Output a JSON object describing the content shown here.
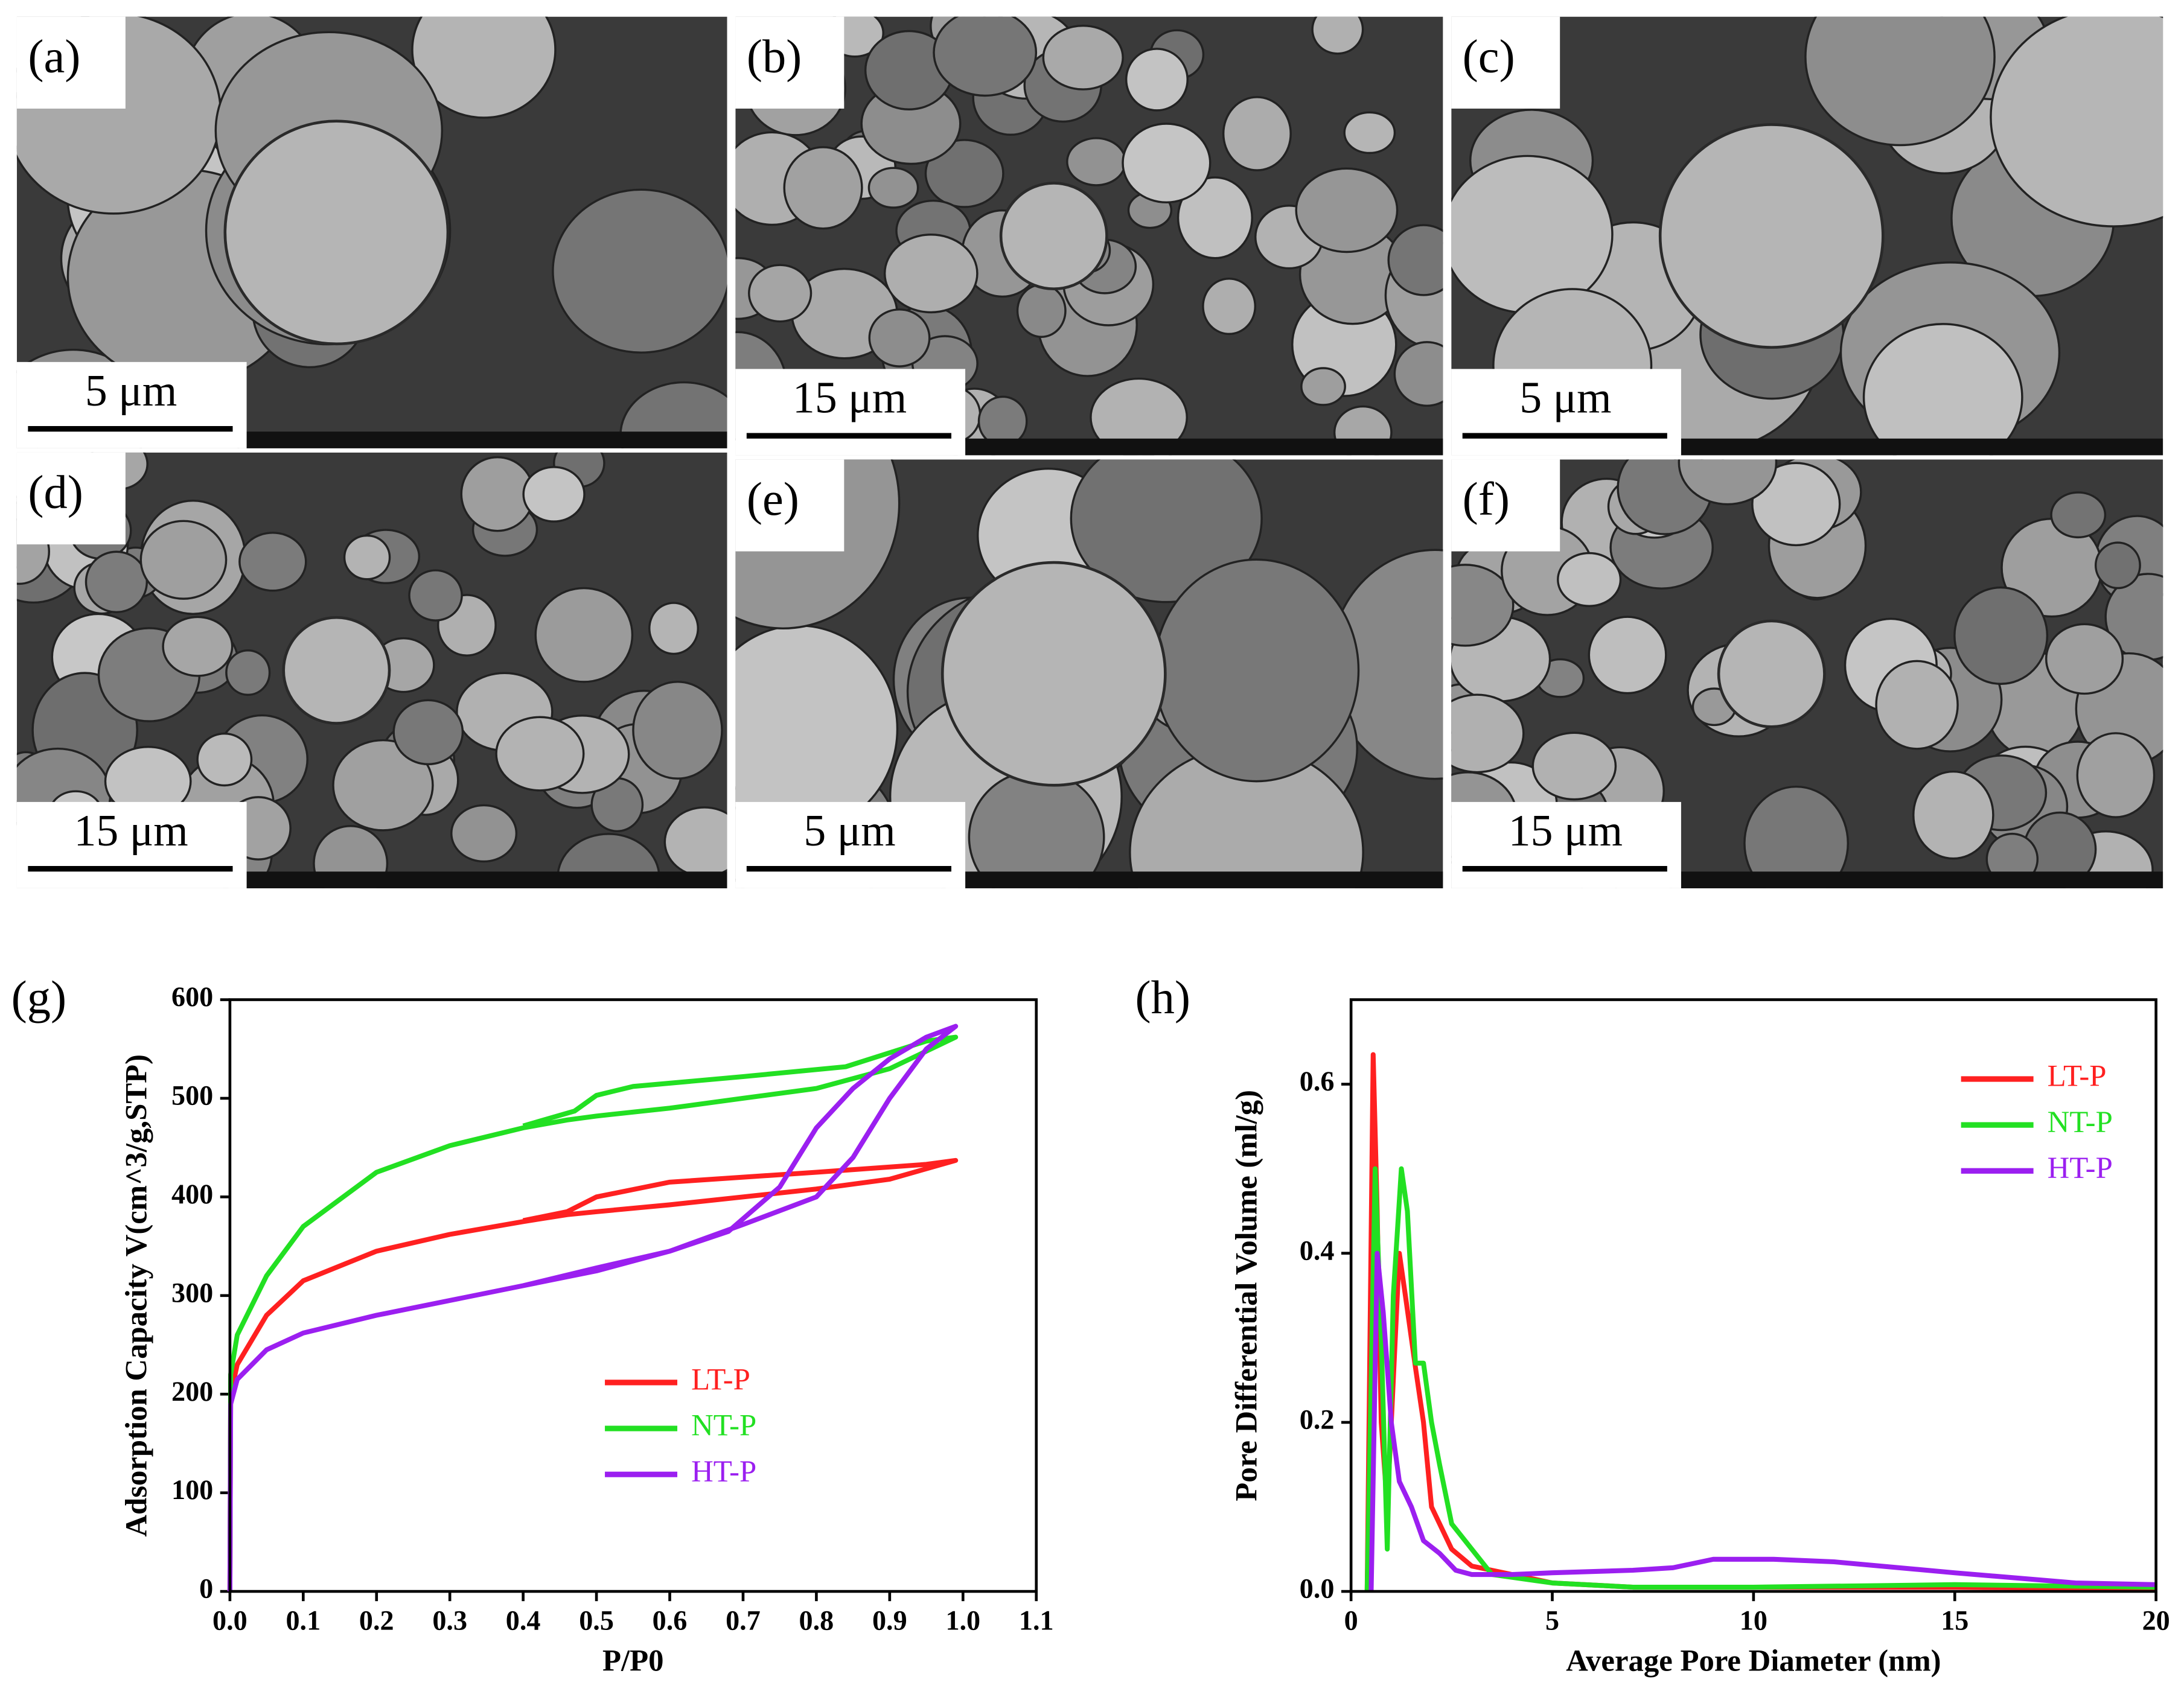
{
  "panels": [
    {
      "label": "(a)",
      "scale_bar": "5 μm"
    },
    {
      "label": "(b)",
      "scale_bar": "15 μm"
    },
    {
      "label": "(c)",
      "scale_bar": "5 μm"
    },
    {
      "label": "(d)",
      "scale_bar": "15 μm"
    },
    {
      "label": "(e)",
      "scale_bar": "5 μm"
    },
    {
      "label": "(f)",
      "scale_bar": "15 μm"
    }
  ],
  "chart_data": [
    {
      "type": "line",
      "label": "(g)",
      "x_label": "P/P0",
      "y_label": "Adsorption Capacity V(cm^3/g,STP)",
      "xlim": [
        0,
        1.1
      ],
      "xticks": [
        {
          "value": 0,
          "label": "0.0"
        },
        0.1,
        0.2,
        0.3,
        0.4,
        0.5,
        0.6,
        0.7,
        0.8,
        0.9,
        {
          "value": 1,
          "label": "1.0"
        },
        1.1
      ],
      "ylim": [
        0,
        600
      ],
      "yticks": [
        0,
        100,
        200,
        300,
        400,
        500,
        600
      ],
      "legend": "center",
      "series": [
        {
          "name": "LT-P",
          "color": "#ff2020",
          "x": [
            0,
            0.001,
            0.01,
            0.05,
            0.1,
            0.2,
            0.3,
            0.4,
            0.46,
            0.5,
            0.6,
            0.7,
            0.8,
            0.9,
            0.99,
            0.95,
            0.8,
            0.6,
            0.5,
            0.46,
            0.4
          ],
          "values": [
            0,
            200,
            230,
            280,
            315,
            345,
            362,
            375,
            382,
            385,
            392,
            400,
            408,
            418,
            437,
            433,
            425,
            415,
            400,
            385,
            376
          ]
        },
        {
          "name": "NT-P",
          "color": "#22e022",
          "x": [
            0,
            0.001,
            0.01,
            0.05,
            0.1,
            0.2,
            0.3,
            0.4,
            0.46,
            0.5,
            0.6,
            0.7,
            0.8,
            0.9,
            0.99,
            0.95,
            0.84,
            0.7,
            0.55,
            0.5,
            0.47,
            0.4
          ],
          "values": [
            0,
            220,
            260,
            320,
            370,
            425,
            452,
            470,
            478,
            482,
            490,
            500,
            510,
            530,
            562,
            558,
            532,
            522,
            512,
            503,
            487,
            472
          ]
        },
        {
          "name": "HT-P",
          "color": "#9b1ff0",
          "x": [
            0,
            0.001,
            0.01,
            0.05,
            0.1,
            0.2,
            0.3,
            0.4,
            0.5,
            0.6,
            0.7,
            0.8,
            0.85,
            0.9,
            0.95,
            0.99,
            0.95,
            0.9,
            0.85,
            0.8,
            0.75,
            0.68,
            0.6,
            0.5,
            0.4
          ],
          "values": [
            0,
            190,
            215,
            245,
            262,
            280,
            295,
            310,
            328,
            345,
            372,
            400,
            440,
            500,
            550,
            573,
            562,
            540,
            510,
            470,
            410,
            365,
            345,
            325,
            310
          ]
        }
      ]
    },
    {
      "type": "line",
      "label": "(h)",
      "x_label": "Average Pore Diameter (nm)",
      "y_label": "Pore Differential Volume (ml/g)",
      "xlim": [
        0,
        20
      ],
      "xticks": [
        0,
        5,
        10,
        15,
        20
      ],
      "ylim": [
        0,
        0.7
      ],
      "yticks": [
        {
          "value": 0,
          "label": "0.0"
        },
        0.2,
        0.4,
        0.6
      ],
      "legend": "upper right",
      "series": [
        {
          "name": "LT-P",
          "color": "#ff2020",
          "x": [
            0.4,
            0.55,
            0.65,
            0.75,
            0.9,
            1.05,
            1.2,
            1.35,
            1.6,
            1.8,
            2.0,
            2.5,
            3,
            4,
            5,
            7,
            10,
            15,
            20
          ],
          "values": [
            0,
            0.635,
            0.45,
            0.2,
            0.1,
            0.25,
            0.4,
            0.35,
            0.265,
            0.2,
            0.1,
            0.05,
            0.03,
            0.02,
            0.01,
            0.005,
            0.005,
            0.005,
            0.003
          ]
        },
        {
          "name": "NT-P",
          "color": "#22e022",
          "x": [
            0.4,
            0.6,
            0.75,
            0.9,
            1.05,
            1.25,
            1.4,
            1.6,
            1.8,
            2.0,
            2.2,
            2.5,
            3,
            3.5,
            5,
            7,
            10,
            15,
            20
          ],
          "values": [
            0,
            0.5,
            0.3,
            0.05,
            0.35,
            0.5,
            0.45,
            0.27,
            0.27,
            0.2,
            0.15,
            0.08,
            0.05,
            0.02,
            0.01,
            0.005,
            0.005,
            0.008,
            0.005
          ]
        },
        {
          "name": "HT-P",
          "color": "#9b1ff0",
          "x": [
            0.5,
            0.65,
            0.8,
            1.0,
            1.2,
            1.5,
            1.8,
            2.2,
            2.6,
            3,
            4,
            5,
            7,
            8,
            9,
            10.5,
            12,
            15,
            18,
            20
          ],
          "values": [
            0,
            0.4,
            0.33,
            0.2,
            0.13,
            0.1,
            0.06,
            0.045,
            0.025,
            0.02,
            0.02,
            0.022,
            0.025,
            0.028,
            0.038,
            0.038,
            0.035,
            0.022,
            0.01,
            0.008
          ]
        }
      ]
    }
  ]
}
